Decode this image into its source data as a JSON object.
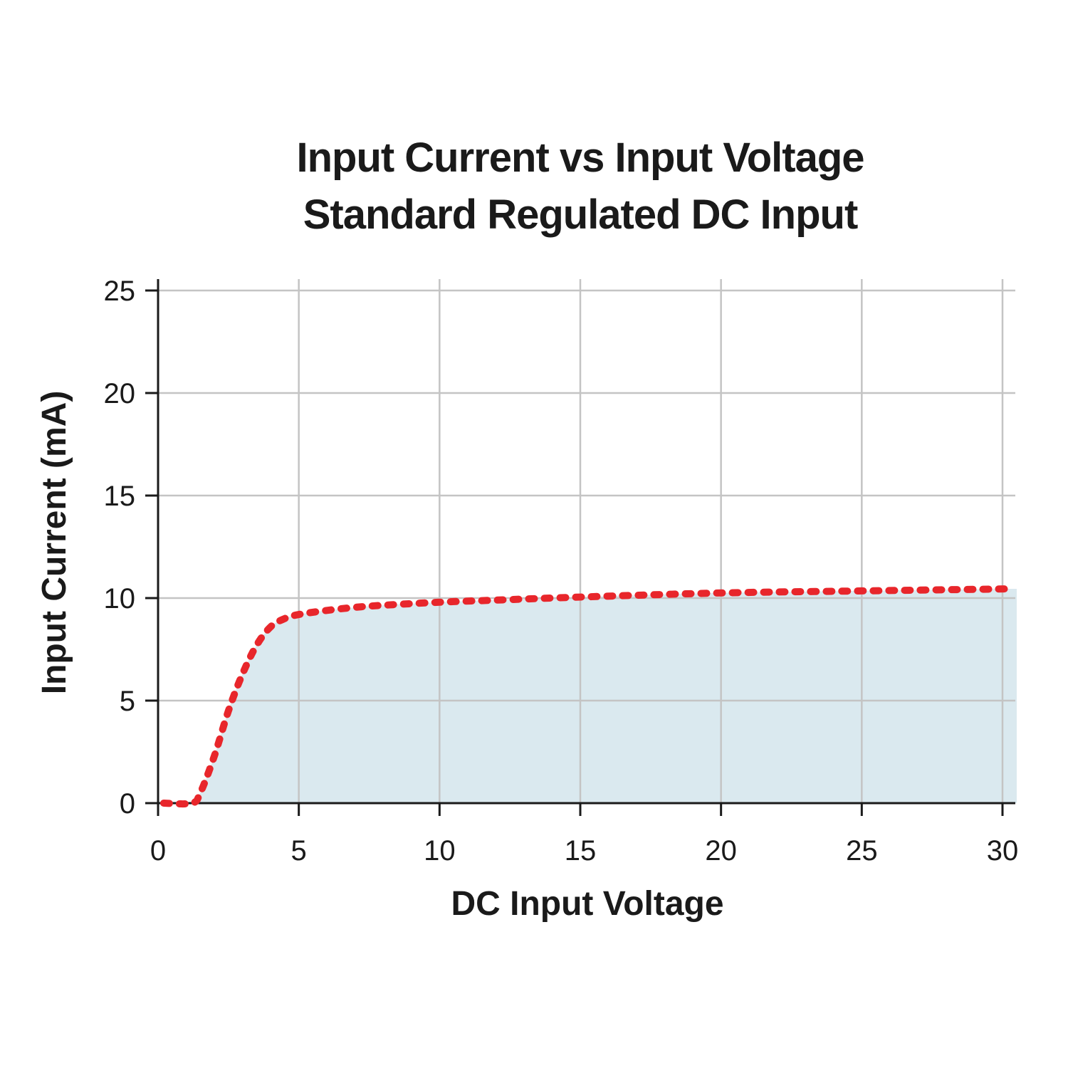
{
  "chart_data": {
    "type": "area",
    "title": "Input Current vs Input Voltage",
    "subtitle": "Standard Regulated DC Input",
    "xlabel": "DC Input Voltage",
    "ylabel": "Input Current (mA)",
    "xlim": [
      0,
      30.5
    ],
    "ylim": [
      0,
      25
    ],
    "xticks": [
      0,
      5,
      10,
      15,
      20,
      25,
      30
    ],
    "yticks": [
      0,
      5,
      10,
      15,
      20,
      25
    ],
    "grid": true,
    "series": [
      {
        "line_color": "#e8262b",
        "fill_color": "#dae9ef",
        "line_style": "dotted",
        "x": [
          0.2,
          1.2,
          1.5,
          2.0,
          2.5,
          3.0,
          3.5,
          4.0,
          4.5,
          5.0,
          6.0,
          7.0,
          8.0,
          10.0,
          12.0,
          15.0,
          20.0,
          25.0,
          30.3
        ],
        "y": [
          0.0,
          0.0,
          0.5,
          2.3,
          4.5,
          6.3,
          7.7,
          8.6,
          9.0,
          9.2,
          9.4,
          9.55,
          9.65,
          9.8,
          9.9,
          10.05,
          10.25,
          10.35,
          10.45
        ]
      }
    ]
  }
}
